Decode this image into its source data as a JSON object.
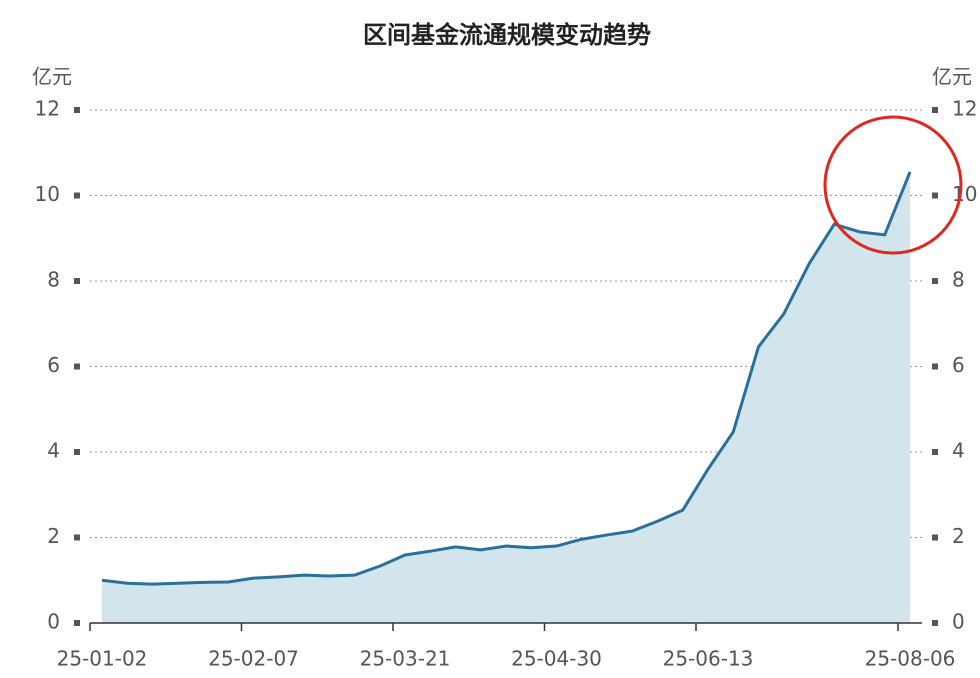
{
  "chart_data": {
    "type": "area",
    "title": "区间基金流通规模变动趋势",
    "y_label": "亿元",
    "y2_label": "亿元",
    "categories": [
      "25-01-02",
      null,
      null,
      null,
      null,
      null,
      "25-02-07",
      null,
      null,
      null,
      null,
      null,
      "25-03-21",
      null,
      null,
      null,
      null,
      null,
      "25-04-30",
      null,
      null,
      null,
      null,
      null,
      "25-06-13",
      null,
      null,
      null,
      null,
      null,
      null,
      null,
      "25-08-06"
    ],
    "values": [
      1.0,
      0.93,
      0.91,
      0.93,
      0.95,
      0.96,
      1.05,
      1.08,
      1.12,
      1.1,
      1.12,
      1.33,
      1.59,
      1.68,
      1.78,
      1.71,
      1.8,
      1.76,
      1.8,
      1.96,
      2.06,
      2.15,
      2.38,
      2.64,
      3.6,
      4.47,
      6.46,
      7.23,
      8.4,
      9.33,
      9.15,
      9.08,
      10.55
    ],
    "color": "#2a7099",
    "area_color": "#d2e4ec",
    "ylim": [
      0,
      12
    ],
    "yticks": [
      0,
      2,
      4,
      6,
      8,
      10,
      12
    ],
    "y2lim": [
      0,
      12
    ],
    "y2ticks": [
      0,
      2,
      4,
      6,
      8,
      10,
      12
    ],
    "grid": true
  }
}
